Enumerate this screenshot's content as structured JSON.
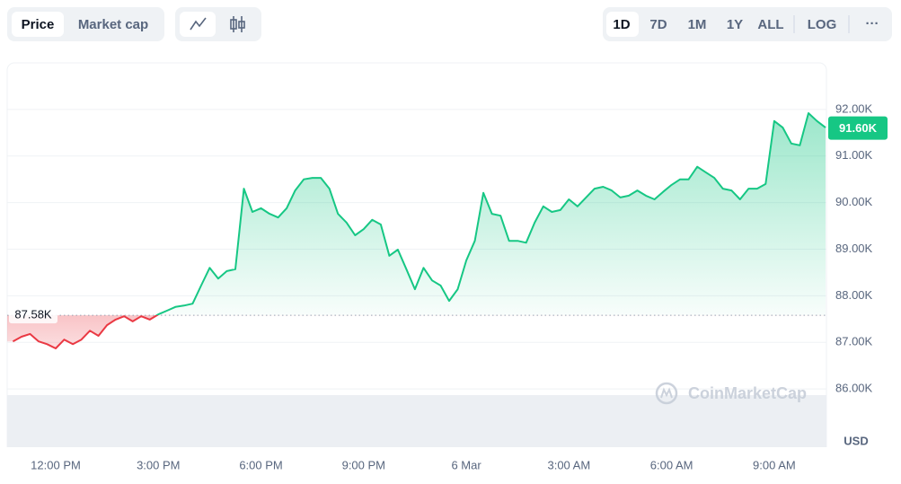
{
  "toolbar": {
    "tabs": [
      "Price",
      "Market cap"
    ],
    "selected_tab": "Price",
    "ranges": [
      "1D",
      "7D",
      "1M",
      "1Y",
      "ALL"
    ],
    "selected_range": "1D",
    "log_button": "LOG",
    "menu": "···"
  },
  "watermark": "CoinMarketCap",
  "chart_data": {
    "type": "line",
    "log_scale": false,
    "grid": true,
    "color": "#16c784",
    "negative_color": "#ea3943",
    "categories": [
      null,
      null,
      null,
      null,
      null,
      "12:00 PM",
      null,
      null,
      null,
      null,
      null,
      null,
      null,
      null,
      null,
      null,
      null,
      "3:00 PM",
      null,
      null,
      null,
      null,
      null,
      null,
      null,
      null,
      null,
      null,
      null,
      "6:00 PM",
      null,
      null,
      null,
      null,
      null,
      null,
      null,
      null,
      null,
      null,
      null,
      "9:00 PM",
      null,
      null,
      null,
      null,
      null,
      null,
      null,
      null,
      null,
      null,
      null,
      "6 Mar",
      null,
      null,
      null,
      null,
      null,
      null,
      null,
      null,
      null,
      null,
      null,
      "3:00 AM",
      null,
      null,
      null,
      null,
      null,
      null,
      null,
      null,
      null,
      null,
      null,
      "6:00 AM",
      null,
      null,
      null,
      null,
      null,
      null,
      null,
      null,
      null,
      null,
      null,
      "9:00 AM",
      null,
      null,
      null,
      null,
      null,
      null
    ],
    "values": [
      87020,
      87120,
      87180,
      87020,
      86960,
      86870,
      87060,
      86960,
      87060,
      87250,
      87140,
      87370,
      87490,
      87560,
      87450,
      87560,
      87490,
      87600,
      87680,
      87760,
      87790,
      87830,
      88220,
      88600,
      88370,
      88530,
      88570,
      90300,
      89800,
      89880,
      89760,
      89680,
      89880,
      90260,
      90500,
      90530,
      90530,
      90300,
      89760,
      89570,
      89300,
      89430,
      89630,
      89530,
      88860,
      88990,
      88570,
      88140,
      88600,
      88330,
      88220,
      87890,
      88140,
      88760,
      89180,
      90210,
      89760,
      89720,
      89180,
      89180,
      89140,
      89570,
      89920,
      89800,
      89840,
      90070,
      89920,
      90110,
      90300,
      90340,
      90260,
      90110,
      90150,
      90260,
      90150,
      90070,
      90230,
      90380,
      90500,
      90500,
      90770,
      90650,
      90530,
      90300,
      90260,
      90070,
      90300,
      90300,
      90400,
      91750,
      91610,
      91270,
      91230,
      91920,
      91750,
      91610
    ],
    "baseline": {
      "value": 87580,
      "label": "87.58K"
    },
    "last_price": {
      "value": 91600,
      "label": "91.60K"
    },
    "y_axis_label": "USD",
    "ylim": [
      84750,
      93000
    ],
    "yticks": [
      {
        "value": 86000,
        "label": "86.00K"
      },
      {
        "value": 87000,
        "label": "87.00K"
      },
      {
        "value": 88000,
        "label": "88.00K"
      },
      {
        "value": 89000,
        "label": "89.00K"
      },
      {
        "value": 90000,
        "label": "90.00K"
      },
      {
        "value": 91000,
        "label": "91.00K"
      },
      {
        "value": 92000,
        "label": "92.00K"
      }
    ]
  }
}
